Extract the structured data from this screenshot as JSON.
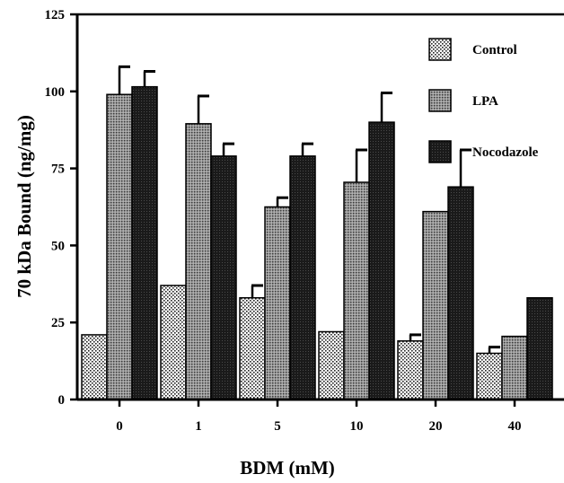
{
  "chart_data": {
    "type": "bar",
    "xlabel": "BDM (mM)",
    "ylabel": "70 kDa Bound (ng/mg)",
    "categories": [
      "0",
      "1",
      "5",
      "10",
      "20",
      "40"
    ],
    "ylim": [
      0,
      125
    ],
    "yticks": [
      "0",
      "25",
      "50",
      "75",
      "100",
      "125"
    ],
    "series": [
      {
        "name": "Control",
        "values": [
          21,
          37,
          33,
          22,
          19,
          15
        ],
        "errors": [
          0,
          0,
          4,
          0,
          2,
          2
        ],
        "pattern": "dots"
      },
      {
        "name": "LPA",
        "values": [
          99,
          89.5,
          62.5,
          70.5,
          61,
          20.5
        ],
        "errors": [
          9,
          9,
          3,
          10.5,
          0,
          0
        ],
        "pattern": "fine-grid"
      },
      {
        "name": "Nocodazole",
        "values": [
          101.5,
          79,
          79,
          90,
          69,
          33
        ],
        "errors": [
          5,
          4,
          4,
          9.5,
          12,
          0
        ],
        "pattern": "dense-dark"
      }
    ],
    "legend_position": "top-right",
    "grid": false
  }
}
